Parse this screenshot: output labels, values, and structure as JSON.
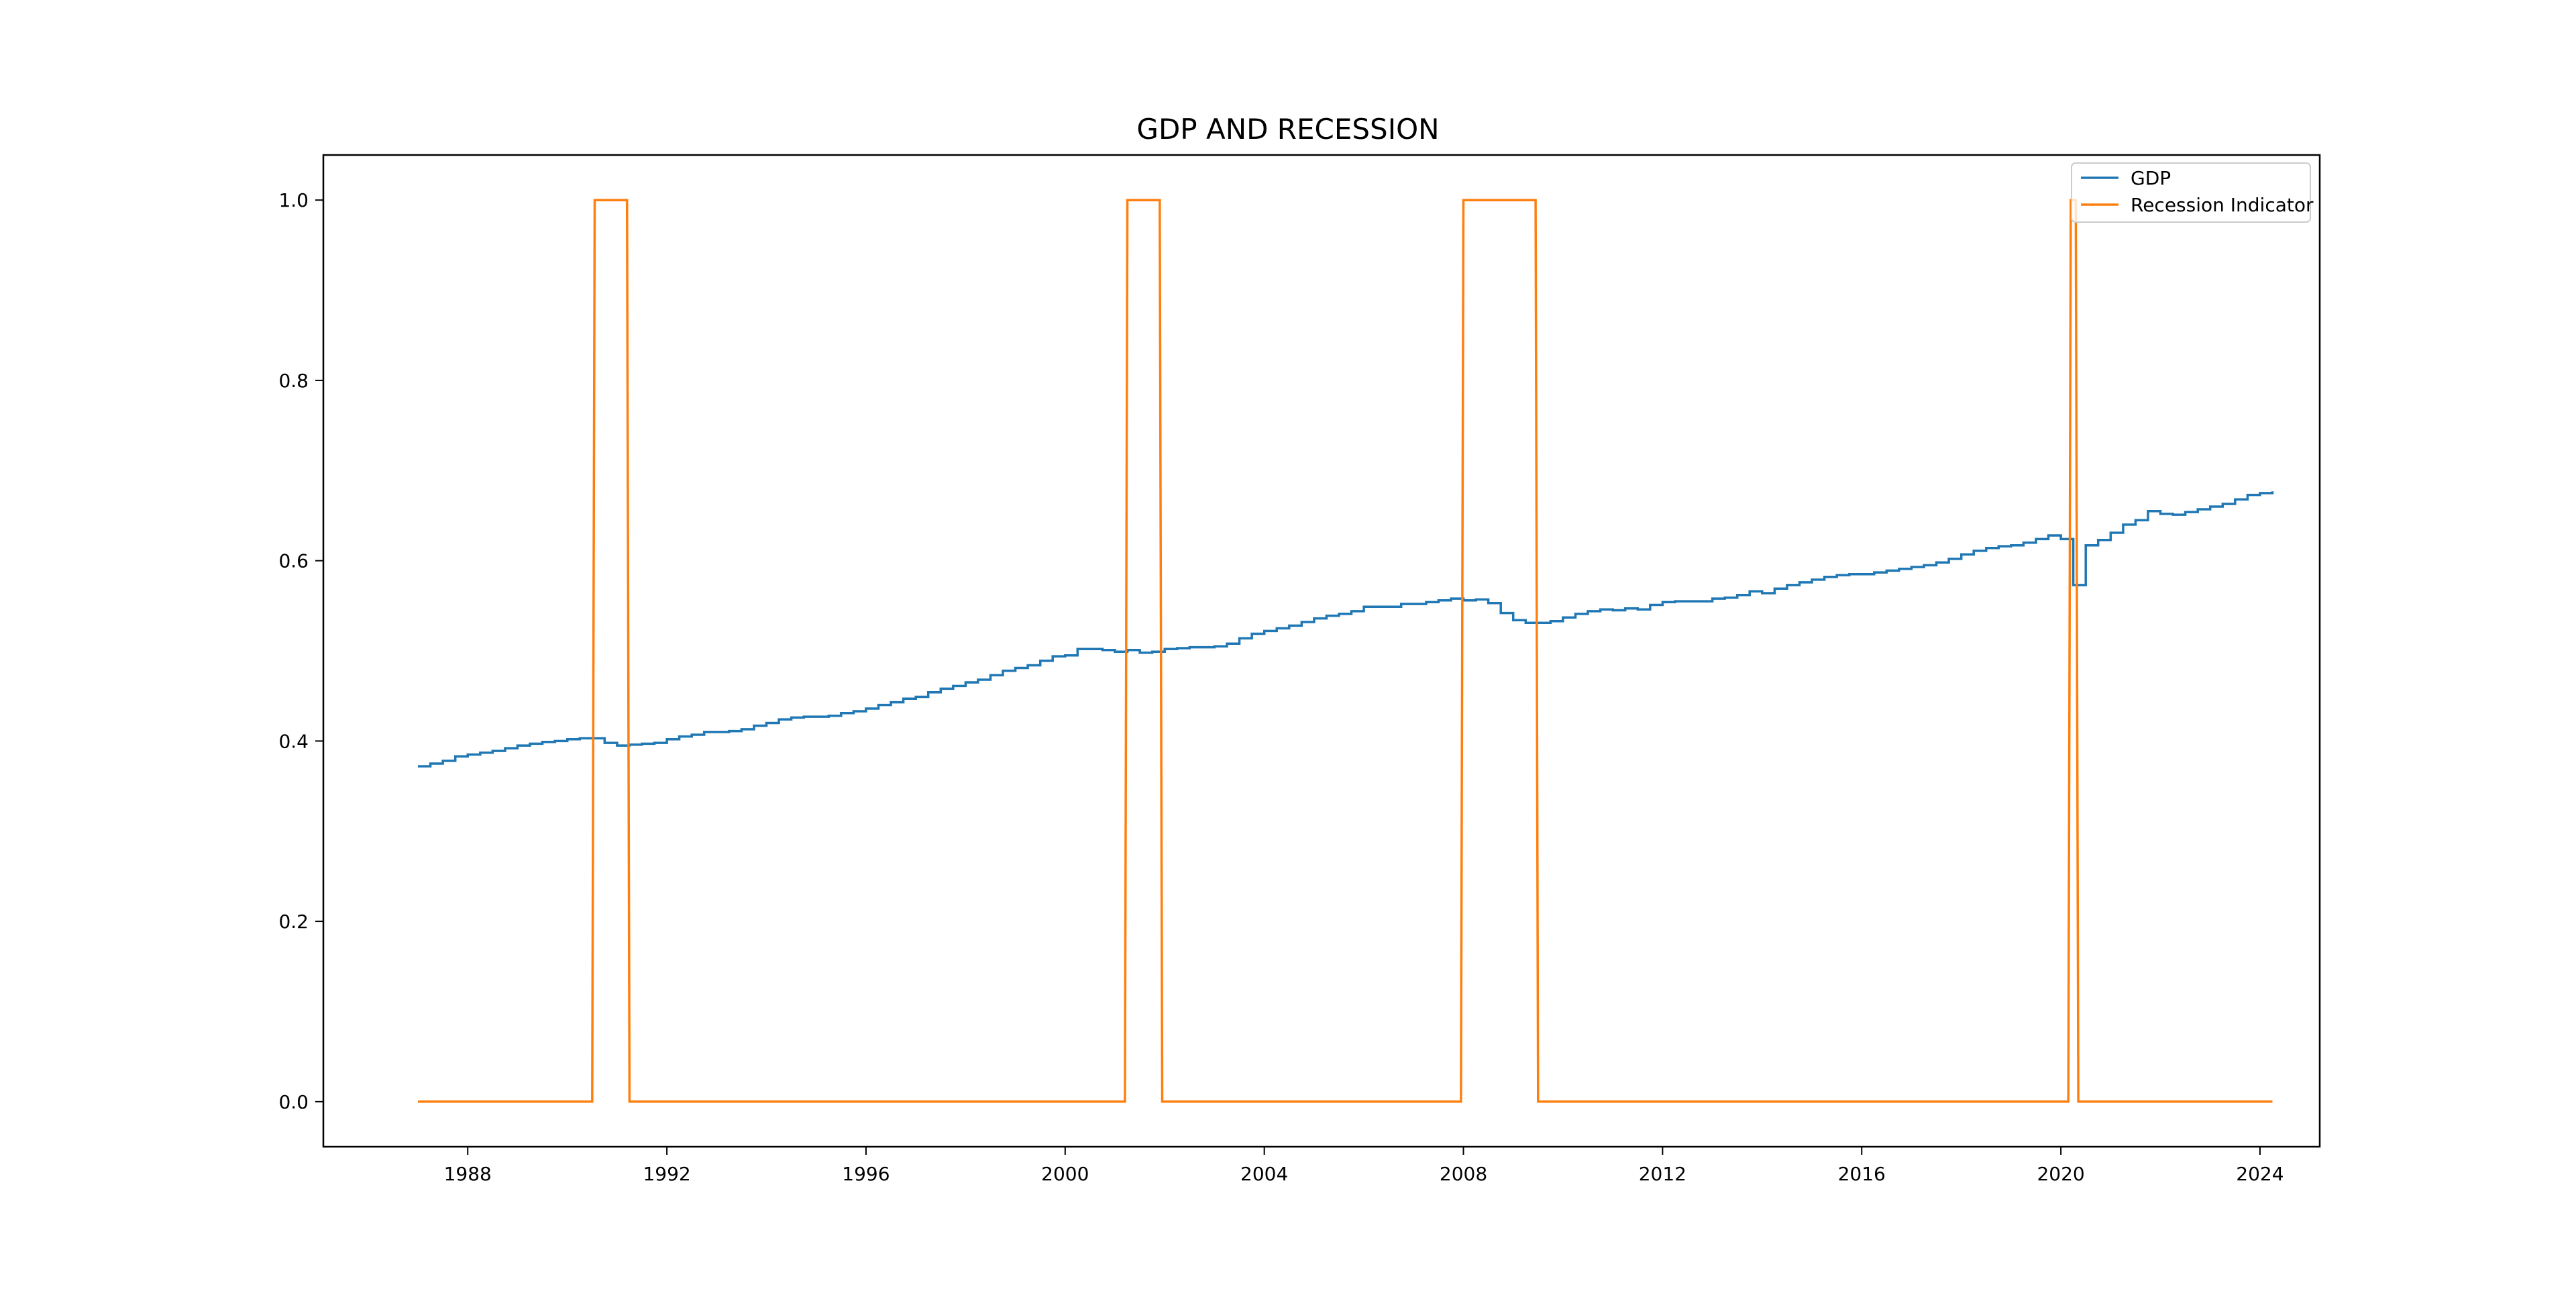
{
  "chart_data": {
    "type": "line",
    "title": "GDP AND RECESSION",
    "xlabel": "",
    "ylabel": "",
    "xlim": [
      1985.1,
      2025.2
    ],
    "ylim": [
      -0.05,
      1.05
    ],
    "x_ticks": [
      1988,
      1992,
      1996,
      2000,
      2004,
      2008,
      2012,
      2016,
      2020,
      2024
    ],
    "y_ticks": [
      0.0,
      0.2,
      0.4,
      0.6,
      0.8,
      1.0
    ],
    "grid": false,
    "legend_position": "top-right",
    "series": [
      {
        "name": "GDP",
        "color": "#1f77b4",
        "step": true,
        "points": [
          [
            1987.0,
            0.372
          ],
          [
            1987.25,
            0.375
          ],
          [
            1987.5,
            0.378
          ],
          [
            1987.75,
            0.383
          ],
          [
            1988.0,
            0.385
          ],
          [
            1988.25,
            0.387
          ],
          [
            1988.5,
            0.389
          ],
          [
            1988.75,
            0.392
          ],
          [
            1989.0,
            0.395
          ],
          [
            1989.25,
            0.397
          ],
          [
            1989.5,
            0.399
          ],
          [
            1989.75,
            0.4
          ],
          [
            1990.0,
            0.402
          ],
          [
            1990.25,
            0.403
          ],
          [
            1990.5,
            0.403
          ],
          [
            1990.75,
            0.398
          ],
          [
            1991.0,
            0.395
          ],
          [
            1991.25,
            0.396
          ],
          [
            1991.5,
            0.397
          ],
          [
            1991.75,
            0.398
          ],
          [
            1992.0,
            0.402
          ],
          [
            1992.25,
            0.405
          ],
          [
            1992.5,
            0.407
          ],
          [
            1992.75,
            0.41
          ],
          [
            1993.0,
            0.41
          ],
          [
            1993.25,
            0.411
          ],
          [
            1993.5,
            0.413
          ],
          [
            1993.75,
            0.417
          ],
          [
            1994.0,
            0.42
          ],
          [
            1994.25,
            0.424
          ],
          [
            1994.5,
            0.426
          ],
          [
            1994.75,
            0.427
          ],
          [
            1995.0,
            0.427
          ],
          [
            1995.25,
            0.428
          ],
          [
            1995.5,
            0.431
          ],
          [
            1995.75,
            0.433
          ],
          [
            1996.0,
            0.436
          ],
          [
            1996.25,
            0.44
          ],
          [
            1996.5,
            0.443
          ],
          [
            1996.75,
            0.447
          ],
          [
            1997.0,
            0.449
          ],
          [
            1997.25,
            0.454
          ],
          [
            1997.5,
            0.458
          ],
          [
            1997.75,
            0.461
          ],
          [
            1998.0,
            0.465
          ],
          [
            1998.25,
            0.468
          ],
          [
            1998.5,
            0.473
          ],
          [
            1998.75,
            0.478
          ],
          [
            1999.0,
            0.481
          ],
          [
            1999.25,
            0.484
          ],
          [
            1999.5,
            0.489
          ],
          [
            1999.75,
            0.494
          ],
          [
            2000.0,
            0.495
          ],
          [
            2000.25,
            0.502
          ],
          [
            2000.5,
            0.502
          ],
          [
            2000.75,
            0.501
          ],
          [
            2001.0,
            0.499
          ],
          [
            2001.25,
            0.501
          ],
          [
            2001.5,
            0.498
          ],
          [
            2001.75,
            0.499
          ],
          [
            2002.0,
            0.502
          ],
          [
            2002.25,
            0.503
          ],
          [
            2002.5,
            0.504
          ],
          [
            2002.75,
            0.504
          ],
          [
            2003.0,
            0.505
          ],
          [
            2003.25,
            0.508
          ],
          [
            2003.5,
            0.514
          ],
          [
            2003.75,
            0.519
          ],
          [
            2004.0,
            0.522
          ],
          [
            2004.25,
            0.525
          ],
          [
            2004.5,
            0.528
          ],
          [
            2004.75,
            0.532
          ],
          [
            2005.0,
            0.536
          ],
          [
            2005.25,
            0.539
          ],
          [
            2005.5,
            0.541
          ],
          [
            2005.75,
            0.544
          ],
          [
            2006.0,
            0.549
          ],
          [
            2006.25,
            0.549
          ],
          [
            2006.5,
            0.549
          ],
          [
            2006.75,
            0.552
          ],
          [
            2007.0,
            0.552
          ],
          [
            2007.25,
            0.554
          ],
          [
            2007.5,
            0.556
          ],
          [
            2007.75,
            0.558
          ],
          [
            2008.0,
            0.556
          ],
          [
            2008.25,
            0.557
          ],
          [
            2008.5,
            0.553
          ],
          [
            2008.75,
            0.542
          ],
          [
            2009.0,
            0.534
          ],
          [
            2009.25,
            0.531
          ],
          [
            2009.5,
            0.531
          ],
          [
            2009.75,
            0.533
          ],
          [
            2010.0,
            0.537
          ],
          [
            2010.25,
            0.541
          ],
          [
            2010.5,
            0.544
          ],
          [
            2010.75,
            0.546
          ],
          [
            2011.0,
            0.545
          ],
          [
            2011.25,
            0.547
          ],
          [
            2011.5,
            0.546
          ],
          [
            2011.75,
            0.551
          ],
          [
            2012.0,
            0.554
          ],
          [
            2012.25,
            0.555
          ],
          [
            2012.5,
            0.555
          ],
          [
            2012.75,
            0.555
          ],
          [
            2013.0,
            0.558
          ],
          [
            2013.25,
            0.559
          ],
          [
            2013.5,
            0.562
          ],
          [
            2013.75,
            0.566
          ],
          [
            2014.0,
            0.564
          ],
          [
            2014.25,
            0.569
          ],
          [
            2014.5,
            0.573
          ],
          [
            2014.75,
            0.576
          ],
          [
            2015.0,
            0.579
          ],
          [
            2015.25,
            0.582
          ],
          [
            2015.5,
            0.584
          ],
          [
            2015.75,
            0.585
          ],
          [
            2016.0,
            0.585
          ],
          [
            2016.25,
            0.587
          ],
          [
            2016.5,
            0.589
          ],
          [
            2016.75,
            0.591
          ],
          [
            2017.0,
            0.593
          ],
          [
            2017.25,
            0.595
          ],
          [
            2017.5,
            0.598
          ],
          [
            2017.75,
            0.602
          ],
          [
            2018.0,
            0.607
          ],
          [
            2018.25,
            0.611
          ],
          [
            2018.5,
            0.614
          ],
          [
            2018.75,
            0.616
          ],
          [
            2019.0,
            0.617
          ],
          [
            2019.25,
            0.62
          ],
          [
            2019.5,
            0.624
          ],
          [
            2019.75,
            0.628
          ],
          [
            2020.0,
            0.624
          ],
          [
            2020.25,
            0.573
          ],
          [
            2020.5,
            0.617
          ],
          [
            2020.75,
            0.623
          ],
          [
            2021.0,
            0.631
          ],
          [
            2021.25,
            0.64
          ],
          [
            2021.5,
            0.645
          ],
          [
            2021.75,
            0.655
          ],
          [
            2022.0,
            0.652
          ],
          [
            2022.25,
            0.651
          ],
          [
            2022.5,
            0.654
          ],
          [
            2022.75,
            0.657
          ],
          [
            2023.0,
            0.66
          ],
          [
            2023.25,
            0.663
          ],
          [
            2023.5,
            0.668
          ],
          [
            2023.75,
            0.673
          ],
          [
            2024.0,
            0.675
          ],
          [
            2024.25,
            0.677
          ]
        ]
      },
      {
        "name": "Recession Indicator",
        "color": "#ff7f0e",
        "step": false,
        "points": [
          [
            1987.0,
            0
          ],
          [
            1990.5,
            0
          ],
          [
            1990.55,
            1
          ],
          [
            1991.2,
            1
          ],
          [
            1991.25,
            0
          ],
          [
            2001.2,
            0
          ],
          [
            2001.25,
            1
          ],
          [
            2001.9,
            1
          ],
          [
            2001.95,
            0
          ],
          [
            2007.95,
            0
          ],
          [
            2008.0,
            1
          ],
          [
            2009.45,
            1
          ],
          [
            2009.5,
            0
          ],
          [
            2020.15,
            0
          ],
          [
            2020.2,
            1
          ],
          [
            2020.3,
            1
          ],
          [
            2020.35,
            0
          ],
          [
            2024.25,
            0
          ]
        ]
      }
    ]
  }
}
